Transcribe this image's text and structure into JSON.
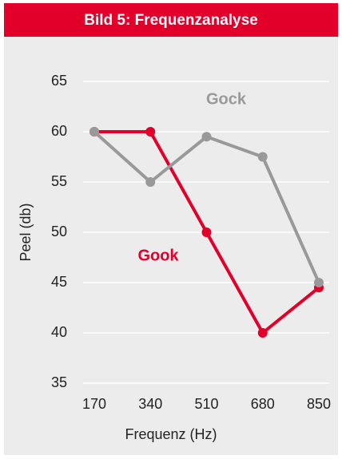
{
  "chart_data": {
    "type": "line",
    "title": "Bild 5: Frequenzanalyse",
    "categories": [
      "170",
      "340",
      "510",
      "680",
      "850"
    ],
    "series": [
      {
        "name": "Gook",
        "color": "#e2002a",
        "values": [
          60,
          60,
          50,
          40,
          44.5
        ]
      },
      {
        "name": "Gock",
        "color": "#999999",
        "values": [
          60,
          55,
          59.5,
          57.5,
          45
        ]
      }
    ],
    "ylim": [
      35,
      65
    ],
    "yticks": [
      35,
      40,
      45,
      50,
      55,
      60,
      65
    ],
    "x_label": "Frequenz (Hz)",
    "y_label": "Peel (db)",
    "grid": true
  }
}
